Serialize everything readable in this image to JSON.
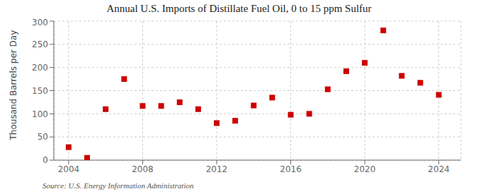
{
  "chart_data": {
    "type": "scatter",
    "title": "Annual U.S. Imports of Distillate Fuel Oil, 0 to 15 ppm Sulfur",
    "ylabel": "Thousand Barrels per Day",
    "annotations": [
      "Source: U.S. Energy Information Administration"
    ],
    "x": [
      2004,
      2005,
      2006,
      2007,
      2008,
      2009,
      2010,
      2011,
      2012,
      2013,
      2014,
      2015,
      2016,
      2017,
      2018,
      2019,
      2020,
      2021,
      2022,
      2023,
      2024
    ],
    "values": [
      28,
      5,
      110,
      175,
      117,
      117,
      125,
      110,
      80,
      85,
      118,
      135,
      98,
      100,
      153,
      192,
      210,
      280,
      182,
      167,
      141
    ],
    "color": "#cc0000",
    "marker": "square",
    "xlim": [
      2003.2,
      2025.2
    ],
    "xticks": [
      2004,
      2008,
      2012,
      2016,
      2020,
      2024
    ],
    "ylim": [
      0,
      300
    ],
    "yticks": [
      0,
      50,
      100,
      150,
      200,
      250,
      300
    ],
    "grid": true
  }
}
